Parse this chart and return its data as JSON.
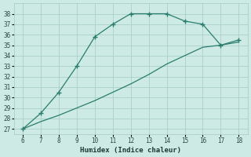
{
  "line1_x": [
    6,
    7,
    8,
    9,
    10,
    11,
    12,
    13,
    14,
    15,
    16,
    17,
    18
  ],
  "line1_y": [
    27,
    28.5,
    30.5,
    33,
    35.8,
    37,
    38,
    38,
    38,
    37.3,
    37,
    35,
    35.5
  ],
  "line2_x": [
    6,
    7,
    8,
    9,
    10,
    11,
    12,
    13,
    14,
    15,
    16,
    17,
    18
  ],
  "line2_y": [
    27,
    27.7,
    28.3,
    29.0,
    29.7,
    30.5,
    31.3,
    32.2,
    33.2,
    34.0,
    34.8,
    35.0,
    35.3
  ],
  "color": "#2a7d6e",
  "background_color": "#cdeae4",
  "grid_color": "#aacfc9",
  "xlabel": "Humidex (Indice chaleur)",
  "xlim": [
    5.5,
    18.5
  ],
  "ylim": [
    26.5,
    39.0
  ],
  "xticks": [
    6,
    7,
    8,
    9,
    10,
    11,
    12,
    13,
    14,
    15,
    16,
    17,
    18
  ],
  "yticks": [
    27,
    28,
    29,
    30,
    31,
    32,
    33,
    34,
    35,
    36,
    37,
    38
  ],
  "marker": "+"
}
